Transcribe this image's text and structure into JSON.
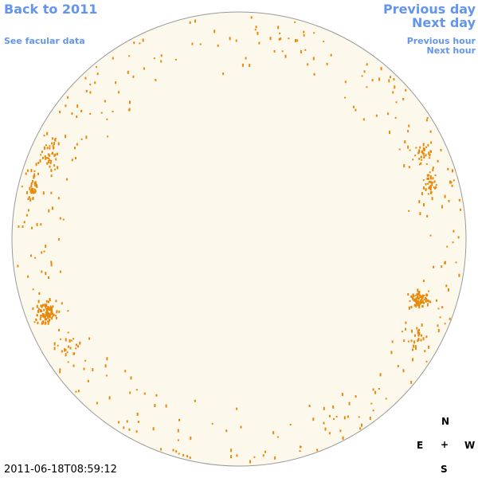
{
  "links": {
    "back": "Back to 2011",
    "facular": "See facular data",
    "previous_day": "Previous day",
    "next_day": "Next day",
    "previous_hour": "Previous hour",
    "next_hour": "Next hour"
  },
  "timestamp": "2011-06-18T08:59:12",
  "compass": {
    "north": "N",
    "east": "E",
    "center": "+",
    "west": "W",
    "south": "S"
  }
}
